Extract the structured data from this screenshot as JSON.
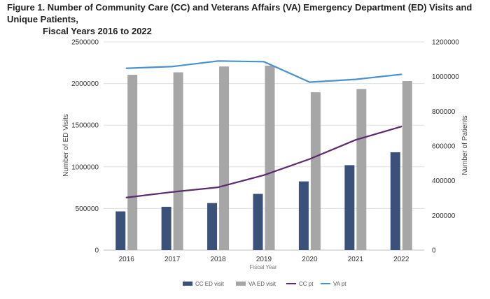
{
  "title": {
    "line1": "Figure 1. Number of Community Care (CC) and Veterans Affairs (VA) Emergency Department (ED) Visits and Unique Patients,",
    "line2": "Fiscal Years 2016 to 2022",
    "mark": "."
  },
  "chart_data": {
    "type": "bar+line",
    "categories": [
      "2016",
      "2017",
      "2018",
      "2019",
      "2020",
      "2021",
      "2022"
    ],
    "xlabel": "Fiscal Year",
    "ylabel_left": "Number of ED Visits",
    "ylabel_right": "Number of Patients",
    "ylim_left": [
      0,
      2500000
    ],
    "ylim_right": [
      0,
      1200000
    ],
    "yticks_left": [
      "0",
      "500000",
      "1000000",
      "1500000",
      "2000000",
      "2500000"
    ],
    "yticks_right": [
      "0",
      "200000",
      "400000",
      "600000",
      "800000",
      "1000000",
      "1200000"
    ],
    "grid": true,
    "legend_position": "bottom",
    "series": [
      {
        "name": "CC ED visit",
        "kind": "bar",
        "axis": "left",
        "color": "#3b5179",
        "values": [
          465000,
          520000,
          565000,
          675000,
          825000,
          1020000,
          1175000
        ]
      },
      {
        "name": "VA ED visit",
        "kind": "bar",
        "axis": "left",
        "color": "#a6a6a6",
        "values": [
          2105000,
          2135000,
          2205000,
          2215000,
          1895000,
          1935000,
          2030000
        ]
      },
      {
        "name": "CC pt",
        "kind": "line",
        "axis": "right",
        "color": "#5c2a6e",
        "values": [
          303000,
          335000,
          362000,
          432000,
          525000,
          635000,
          712000
        ]
      },
      {
        "name": "VA pt",
        "kind": "line",
        "axis": "right",
        "color": "#4a90cf",
        "values": [
          1048000,
          1058000,
          1090000,
          1086000,
          968000,
          984000,
          1013000
        ]
      }
    ]
  }
}
